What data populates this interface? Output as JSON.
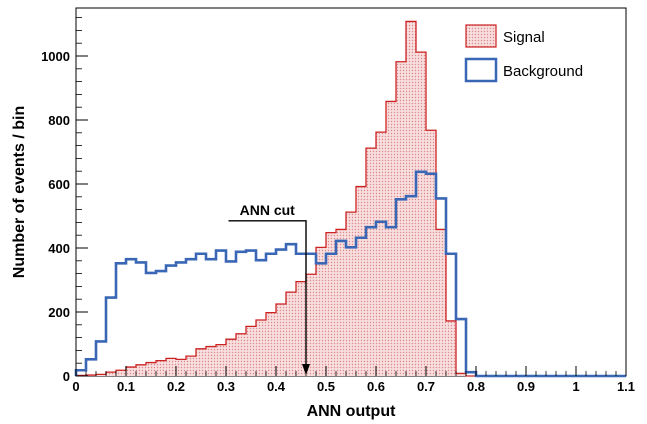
{
  "chart_data": {
    "type": "histogram",
    "xlabel": "ANN output",
    "ylabel": "Number of events / bin",
    "xlim": [
      0,
      1.1
    ],
    "ylim": [
      0,
      1150
    ],
    "x_ticks": [
      0,
      0.1,
      0.2,
      0.3,
      0.4,
      0.5,
      0.6,
      0.7,
      0.8,
      0.9,
      1,
      1.1
    ],
    "x_tick_labels": [
      "0",
      "0.1",
      "0.2",
      "0.3",
      "0.4",
      "0.5",
      "0.6",
      "0.7",
      "0.8",
      "0.9",
      "1",
      "1.1"
    ],
    "y_ticks": [
      0,
      200,
      400,
      600,
      800,
      1000
    ],
    "y_tick_labels": [
      "0",
      "200",
      "400",
      "600",
      "800",
      "1000"
    ],
    "bin_width": 0.02,
    "legend_position": "top-right",
    "grid": false,
    "series": [
      {
        "name": "Signal",
        "style": "filled",
        "color": "#cc2222",
        "fill": "#f2c4c4",
        "values": [
          2,
          3,
          5,
          12,
          18,
          28,
          35,
          42,
          48,
          55,
          52,
          62,
          85,
          92,
          98,
          115,
          132,
          155,
          175,
          198,
          225,
          262,
          295,
          318,
          402,
          448,
          458,
          512,
          592,
          712,
          762,
          858,
          982,
          1108,
          1012,
          768,
          458,
          172,
          8,
          0,
          0,
          0,
          0,
          0,
          0,
          0,
          0,
          0,
          0,
          0,
          0,
          0,
          0,
          0,
          0
        ]
      },
      {
        "name": "Background",
        "style": "line",
        "color": "#3a67b5",
        "values": [
          18,
          52,
          108,
          245,
          352,
          365,
          355,
          322,
          328,
          345,
          355,
          365,
          382,
          365,
          392,
          358,
          388,
          392,
          362,
          382,
          395,
          412,
          382,
          382,
          352,
          382,
          422,
          402,
          432,
          465,
          482,
          465,
          552,
          562,
          638,
          632,
          555,
          382,
          178,
          12,
          0,
          0,
          0,
          0,
          0,
          0,
          0,
          0,
          0,
          0,
          0,
          0,
          0,
          0,
          0
        ]
      }
    ],
    "annotation": {
      "text": "ANN cut",
      "x": 0.46
    }
  }
}
